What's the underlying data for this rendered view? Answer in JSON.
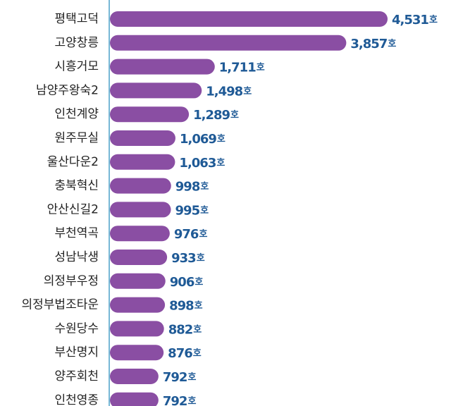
{
  "chart_data": {
    "type": "bar",
    "orientation": "horizontal",
    "categories": [
      "평택고덕",
      "고양창릉",
      "시흥거모",
      "남양주왕숙2",
      "인천계양",
      "원주무실",
      "울산다운2",
      "충북혁신",
      "안산신길2",
      "부천역곡",
      "성남낙생",
      "의정부우정",
      "의정부법조타운",
      "수원당수",
      "부산명지",
      "양주회천",
      "인천영종"
    ],
    "values": [
      4531,
      3857,
      1711,
      1498,
      1289,
      1069,
      1063,
      998,
      995,
      976,
      933,
      906,
      898,
      882,
      876,
      792,
      792
    ],
    "value_labels": [
      "4,531",
      "3,857",
      "1,711",
      "1,498",
      "1,289",
      "1,069",
      "1,063",
      "998",
      "995",
      "976",
      "933",
      "906",
      "898",
      "882",
      "876",
      "792",
      "792"
    ],
    "unit": "호",
    "bar_color": "#8a4ea3",
    "label_color": "#1f5a96",
    "axis_color": "#4aa0c8",
    "grid": false,
    "legend": "none"
  }
}
